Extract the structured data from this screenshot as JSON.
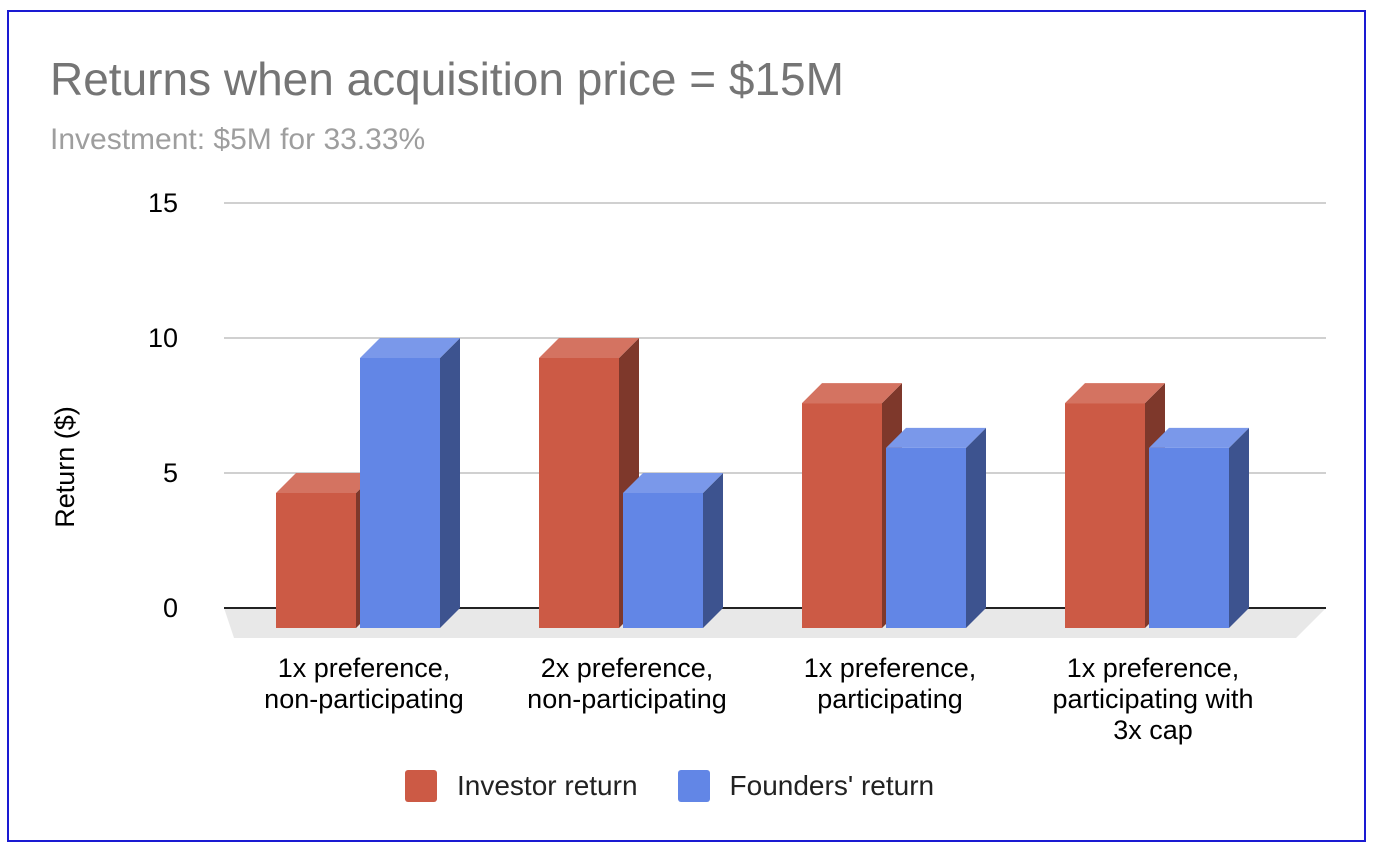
{
  "chart_data": {
    "type": "bar",
    "title": "Returns when acquisition price = $15M",
    "subtitle": "Investment: $5M for 33.33%",
    "xlabel": "",
    "ylabel": "Return ($)",
    "ylim": [
      0,
      15
    ],
    "yticks": [
      "0",
      "5",
      "10",
      "15"
    ],
    "grid": true,
    "style": "3d",
    "legend_position": "bottom",
    "categories": [
      [
        "1x preference,",
        "non-participating"
      ],
      [
        "2x preference,",
        "non-participating"
      ],
      [
        "1x preference,",
        "participating"
      ],
      [
        "1x preference,",
        "participating with",
        "3x cap"
      ]
    ],
    "series": [
      {
        "name": "Investor return",
        "color": "#cc5a45",
        "values": [
          5,
          10,
          8.33,
          8.33
        ]
      },
      {
        "name": "Founders' return",
        "color": "#6286e6",
        "values": [
          10,
          5,
          6.67,
          6.67
        ]
      }
    ]
  }
}
